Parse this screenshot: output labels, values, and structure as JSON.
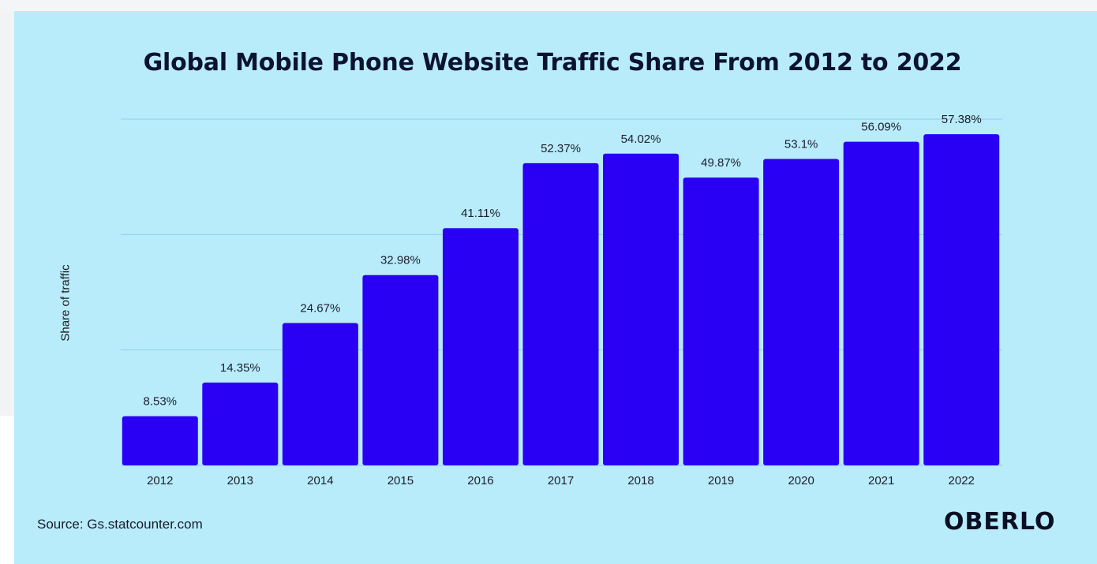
{
  "chart_data": {
    "type": "bar",
    "title": "Global Mobile Phone Website Traffic Share From 2012 to 2022",
    "xlabel": "",
    "ylabel": "Share of traffic",
    "categories": [
      "2012",
      "2013",
      "2014",
      "2015",
      "2016",
      "2017",
      "2018",
      "2019",
      "2020",
      "2021",
      "2022"
    ],
    "values": [
      8.53,
      14.35,
      24.67,
      32.98,
      41.11,
      52.37,
      54.02,
      49.87,
      53.1,
      56.09,
      57.38
    ],
    "data_labels": [
      "8.53%",
      "14.35%",
      "24.67%",
      "32.98%",
      "41.11%",
      "52.37%",
      "54.02%",
      "49.87%",
      "53.1%",
      "56.09%",
      "57.38%"
    ],
    "ylim": [
      0,
      60
    ],
    "grid": true,
    "bar_color": "#2a00f5",
    "gridline_color": "#8fd0e6",
    "background_color": "#b8ecfb"
  },
  "footer": {
    "source": "Source: Gs.statcounter.com",
    "brand": "OBERLO"
  }
}
